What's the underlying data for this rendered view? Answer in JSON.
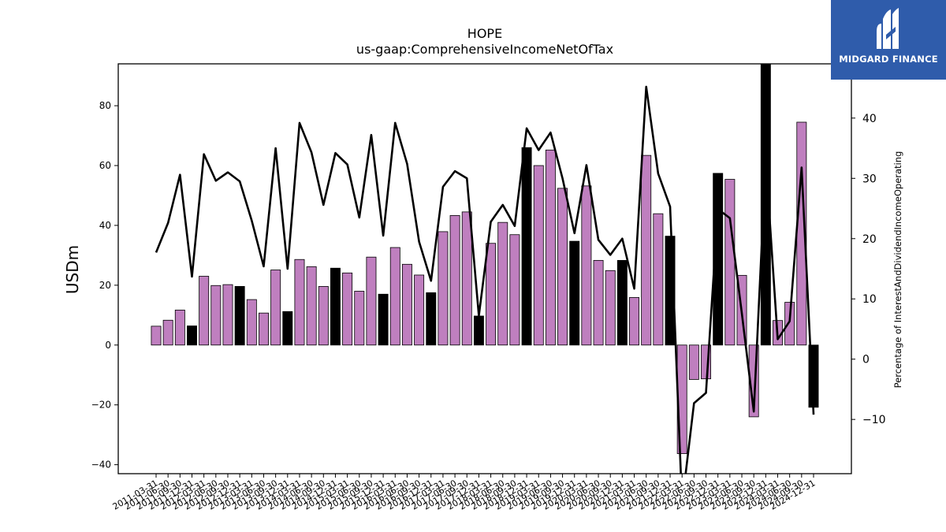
{
  "chart_data": {
    "type": "bar+line",
    "title": "HOPE",
    "subtitle": "us-gaap:ComprehensiveIncomeNetOfTax",
    "ylabel": "USDm",
    "y2label": "Percentage of InterestAndDividendIncomeOperating",
    "ylim": [
      -43,
      94
    ],
    "y2lim": [
      -19,
      49
    ],
    "yticks": [
      -40,
      -20,
      0,
      20,
      40,
      60,
      80
    ],
    "y2ticks": [
      -10,
      0,
      10,
      20,
      30,
      40
    ],
    "colors": {
      "bar_quarter": "#bf7fbf",
      "bar_q4": "#000000",
      "line": "#000000"
    },
    "x": [
      "2011-03-31",
      "2011-06-30",
      "2011-09-30",
      "2011-12-31",
      "2012-03-31",
      "2012-06-30",
      "2012-09-30",
      "2012-12-31",
      "2013-03-31",
      "2013-06-30",
      "2013-09-30",
      "2013-12-31",
      "2014-03-31",
      "2014-06-30",
      "2014-09-30",
      "2014-12-31",
      "2015-03-31",
      "2015-06-30",
      "2015-09-30",
      "2015-12-31",
      "2016-03-31",
      "2016-06-30",
      "2016-09-30",
      "2016-12-31",
      "2017-03-31",
      "2017-06-30",
      "2017-09-30",
      "2017-12-31",
      "2018-03-31",
      "2018-06-30",
      "2018-09-30",
      "2018-12-31",
      "2019-03-31",
      "2019-06-30",
      "2019-09-30",
      "2019-12-31",
      "2020-03-31",
      "2020-06-30",
      "2020-09-30",
      "2020-12-31",
      "2021-03-31",
      "2021-06-30",
      "2021-09-30",
      "2021-12-31",
      "2022-03-31",
      "2022-06-30",
      "2022-09-30",
      "2022-12-31",
      "2023-03-31",
      "2023-06-30",
      "2023-09-30",
      "2023-12-31",
      "2024-03-31",
      "2024-06-30",
      "2024-09-30",
      "2024-12-31"
    ],
    "xticklabels": [
      "2011-03-31",
      "2011-06-30",
      "2011-09-30",
      "2011-12-31",
      "2012-03-31",
      "2012-06-30",
      "2012-09-30",
      "2012-12-31",
      "2013-03-31",
      "2013-06-30",
      "2013-09-30",
      "2013-12-31",
      "2014-03-31",
      "2014-06-30",
      "2014-09-30",
      "2014-12-31",
      "2015-03-31",
      "2015-06-30",
      "2015-09-30",
      "2015-12-31",
      "2016-03-31",
      "2016-06-30",
      "2016-09-30",
      "2016-12-31",
      "2017-03-31",
      "2017-06-30",
      "2017-09-30",
      "2017-12-31",
      "2018-03-31",
      "2018-06-30",
      "2018-09-30",
      "2018-12-31",
      "2019-03-31",
      "2019-06-30",
      "2019-09-30",
      "2019-12-31",
      "2020-03-31",
      "2020-06-30",
      "2020-09-30",
      "2020-12-31",
      "2021-03-31",
      "2021-06-30",
      "2021-09-30",
      "2021-12-31",
      "2022-03-31",
      "2022-06-30",
      "2022-09-30",
      "2022-12-31",
      "2023-03-31",
      "2023-06-30",
      "2023-09-30",
      "2023-12-31",
      "2024-03-31",
      "2024-06-30",
      "2024-09-30",
      "2024-12-31"
    ],
    "bars": [
      6.3,
      8.3,
      11.7,
      6.4,
      23.0,
      19.9,
      20.2,
      19.6,
      15.2,
      10.7,
      25.1,
      11.2,
      28.6,
      26.2,
      19.6,
      25.7,
      24.1,
      18.0,
      29.4,
      17.0,
      32.6,
      27.0,
      23.4,
      17.5,
      37.9,
      43.3,
      44.5,
      9.7,
      34.0,
      41.0,
      36.9,
      66.0,
      60.0,
      65.2,
      52.4,
      34.7,
      53.2,
      28.3,
      24.9,
      28.3,
      15.9,
      63.4,
      43.9,
      36.4,
      -36.3,
      -11.5,
      -11.3,
      57.4,
      55.4,
      23.3,
      -24.0,
      97.0,
      8.2,
      14.3,
      74.5,
      -20.8
    ],
    "bar_is_q4": [
      false,
      false,
      false,
      true,
      false,
      false,
      false,
      true,
      false,
      false,
      false,
      true,
      false,
      false,
      false,
      true,
      false,
      false,
      false,
      true,
      false,
      false,
      false,
      true,
      false,
      false,
      false,
      true,
      false,
      false,
      false,
      true,
      false,
      false,
      false,
      true,
      false,
      false,
      false,
      true,
      false,
      false,
      false,
      true,
      false,
      false,
      false,
      true,
      false,
      false,
      false,
      true,
      false,
      false,
      false,
      true
    ],
    "line": [
      17.7,
      22.6,
      30.6,
      13.7,
      34.0,
      29.6,
      31.0,
      29.5,
      23.0,
      15.4,
      35.0,
      15.0,
      39.2,
      34.3,
      25.6,
      34.2,
      32.3,
      23.5,
      37.2,
      20.5,
      39.2,
      32.4,
      19.5,
      13.0,
      28.6,
      31.2,
      30.0,
      7.2,
      22.8,
      25.6,
      22.1,
      38.3,
      34.7,
      37.6,
      30.0,
      20.9,
      32.2,
      19.8,
      17.3,
      20.0,
      11.7,
      45.2,
      30.8,
      25.3,
      -24.0,
      -7.3,
      -5.6,
      24.9,
      23.4,
      7.6,
      -8.7,
      33.0,
      3.3,
      6.3,
      31.8,
      -9.2
    ]
  },
  "logo": {
    "brand": "MIDGARD FINANCE"
  }
}
